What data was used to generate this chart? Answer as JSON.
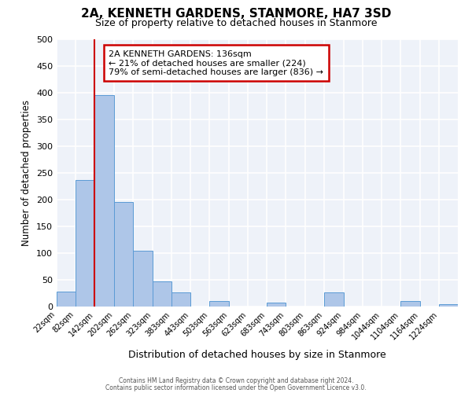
{
  "title": "2A, KENNETH GARDENS, STANMORE, HA7 3SD",
  "subtitle": "Size of property relative to detached houses in Stanmore",
  "xlabel": "Distribution of detached houses by size in Stanmore",
  "ylabel": "Number of detached properties",
  "bar_color": "#aec6e8",
  "bar_edge_color": "#5b9bd5",
  "background_color": "#eef2f9",
  "grid_color": "white",
  "bin_edges": [
    22,
    82,
    142,
    202,
    262,
    323,
    383,
    443,
    503,
    563,
    623,
    683,
    743,
    803,
    863,
    924,
    984,
    1044,
    1104,
    1164,
    1224,
    1284
  ],
  "bin_labels": [
    "22sqm",
    "82sqm",
    "142sqm",
    "202sqm",
    "262sqm",
    "323sqm",
    "383sqm",
    "443sqm",
    "503sqm",
    "563sqm",
    "623sqm",
    "683sqm",
    "743sqm",
    "803sqm",
    "863sqm",
    "924sqm",
    "984sqm",
    "1044sqm",
    "1104sqm",
    "1164sqm",
    "1224sqm"
  ],
  "counts": [
    28,
    237,
    395,
    196,
    104,
    47,
    26,
    0,
    11,
    0,
    0,
    8,
    0,
    0,
    26,
    0,
    0,
    0,
    11,
    0,
    5
  ],
  "red_line_x": 142,
  "annotation_title": "2A KENNETH GARDENS: 136sqm",
  "annotation_line1": "← 21% of detached houses are smaller (224)",
  "annotation_line2": "79% of semi-detached houses are larger (836) →",
  "annotation_box_color": "white",
  "annotation_box_edge": "#cc0000",
  "red_line_color": "#cc0000",
  "ylim": [
    0,
    500
  ],
  "yticks": [
    0,
    50,
    100,
    150,
    200,
    250,
    300,
    350,
    400,
    450,
    500
  ],
  "footer1": "Contains HM Land Registry data © Crown copyright and database right 2024.",
  "footer2": "Contains public sector information licensed under the Open Government Licence v3.0."
}
